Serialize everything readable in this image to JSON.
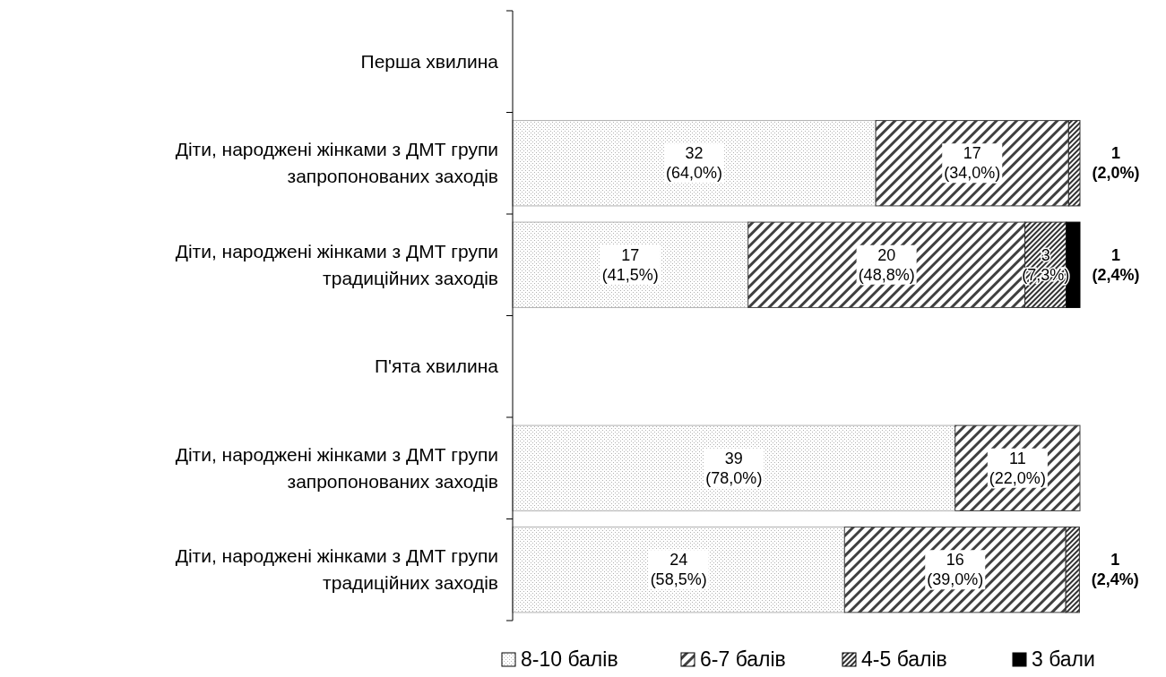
{
  "chart_data": {
    "type": "bar",
    "orientation": "horizontal",
    "stacked": true,
    "xlim": [
      0,
      100
    ],
    "legend": "bottom",
    "tick_labels": "y",
    "categories": [
      "Перша хвилина",
      "Діти, народжені жінками з ДМТ групи запропонованих заходів",
      "Діти, народжені жінками з ДМТ групи традиційних заходів",
      "П'ята хвилина",
      "Діти, народжені жінками з ДМТ групи запропонованих заходів",
      "Діти, народжені жінками з ДМТ групи традиційних заходів"
    ],
    "series": [
      {
        "name": "8-10 балів",
        "color": "#b0b0b0",
        "values": [
          null,
          64.0,
          41.5,
          null,
          78.0,
          58.5
        ],
        "value_labels": [
          null,
          "32\n(64,0%)",
          "17\n(41,5%)",
          null,
          "39\n(78,0%)",
          "24\n(58,5%)"
        ]
      },
      {
        "name": "6-7 балів",
        "color": "#404040",
        "values": [
          null,
          34.0,
          48.8,
          null,
          22.0,
          39.0
        ],
        "value_labels": [
          null,
          "17\n(34,0%)",
          "20\n(48,8%)",
          null,
          "11\n(22,0%)",
          "16\n(39,0%)"
        ]
      },
      {
        "name": "4-5 балів",
        "color": "#303030",
        "values": [
          null,
          2.0,
          7.3,
          null,
          null,
          2.4
        ],
        "value_labels": [
          null,
          "1\n(2,0%)",
          "3\n(7,3%)",
          null,
          null,
          "1\n(2,4%)"
        ]
      },
      {
        "name": "3 бали",
        "color": "#000000",
        "values": [
          null,
          null,
          2.4,
          null,
          null,
          null
        ],
        "value_labels": [
          null,
          null,
          "1\n(2,4%)",
          null,
          null,
          null
        ]
      }
    ]
  }
}
